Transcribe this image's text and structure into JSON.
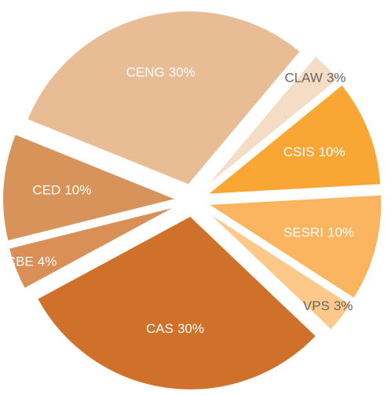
{
  "chart_data": {
    "type": "pie",
    "categories": [
      "CENG",
      "CLAW",
      "CSIS",
      "SESRI",
      "VPS",
      "CAS",
      "CBE",
      "CED"
    ],
    "values": [
      30,
      3,
      10,
      10,
      3,
      30,
      4,
      10
    ],
    "value_labels": [
      "30%",
      "3%",
      "10%",
      "10%",
      "3%",
      "30%",
      "4%",
      "10%"
    ],
    "colors": [
      "#e8bd95",
      "#f5dcc5",
      "#f9a634",
      "#fbb561",
      "#fdc98b",
      "#d0712b",
      "#d98f56",
      "#d8935a"
    ]
  }
}
